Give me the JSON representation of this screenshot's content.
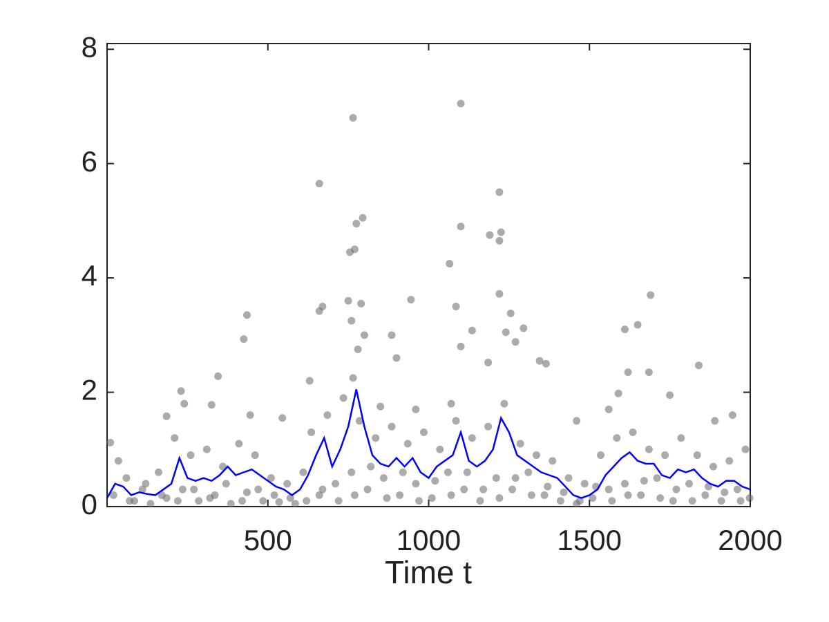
{
  "chart_data": {
    "type": "scatter",
    "xlabel": "Time t",
    "xlim": [
      0,
      2000
    ],
    "ylim": [
      0,
      8.1
    ],
    "xticks": [
      500,
      1000,
      1500,
      2000
    ],
    "yticks": [
      0,
      2,
      4,
      6,
      8
    ],
    "series": [
      {
        "type": "scatter",
        "color": "#666666",
        "x": [
          765,
          1100,
          660,
          1220,
          795,
          775,
          1100,
          1225,
          1190,
          1220,
          770,
          755,
          1065,
          1220,
          1690,
          945,
          750,
          790,
          670,
          1085,
          660,
          435,
          1255,
          1650,
          1295,
          1610,
          1135,
          1240,
          760,
          800,
          885,
          425,
          1270,
          780,
          1100,
          900,
          1185,
          1345,
          1840,
          1365,
          345,
          1620,
          1685,
          630,
          765,
          230,
          1590,
          1750,
          240,
          325,
          1560,
          445,
          185,
          1945,
          1070,
          850,
          960,
          545,
          1460,
          1890,
          10,
          35,
          60,
          85,
          110,
          135,
          160,
          185,
          210,
          235,
          260,
          285,
          310,
          335,
          360,
          385,
          410,
          435,
          460,
          485,
          510,
          535,
          560,
          585,
          610,
          635,
          660,
          685,
          710,
          735,
          760,
          785,
          810,
          835,
          860,
          885,
          910,
          935,
          960,
          985,
          1010,
          1035,
          1060,
          1085,
          1110,
          1135,
          1160,
          1185,
          1210,
          1235,
          1260,
          1285,
          1310,
          1335,
          1360,
          1385,
          1410,
          1435,
          1460,
          1485,
          1510,
          1535,
          1560,
          1585,
          1610,
          1635,
          1660,
          1685,
          1710,
          1735,
          1760,
          1785,
          1810,
          1835,
          1860,
          1885,
          1910,
          1935,
          1960,
          1985,
          1998,
          20,
          70,
          120,
          170,
          220,
          270,
          320,
          370,
          420,
          470,
          520,
          570,
          620,
          670,
          720,
          770,
          820,
          870,
          920,
          970,
          1020,
          1070,
          1120,
          1170,
          1220,
          1270,
          1320,
          1370,
          1420,
          1470,
          1520,
          1570,
          1620,
          1670,
          1720,
          1770,
          1820,
          1870,
          1920,
          1970
        ],
        "values": [
          6.8,
          7.05,
          5.65,
          5.5,
          5.05,
          4.95,
          4.9,
          4.8,
          4.75,
          4.65,
          4.5,
          4.45,
          4.25,
          3.72,
          3.7,
          3.62,
          3.6,
          3.55,
          3.5,
          3.5,
          3.42,
          3.35,
          3.38,
          3.18,
          3.12,
          3.1,
          3.08,
          3.05,
          3.25,
          3.0,
          3.0,
          2.93,
          2.88,
          2.75,
          2.8,
          2.6,
          2.52,
          2.55,
          2.47,
          2.5,
          2.28,
          2.35,
          2.35,
          2.2,
          2.25,
          2.02,
          1.98,
          1.95,
          1.8,
          1.78,
          1.7,
          1.6,
          1.58,
          1.6,
          1.8,
          1.75,
          1.7,
          1.55,
          1.5,
          1.5,
          1.12,
          0.8,
          0.5,
          0.1,
          0.3,
          0.05,
          0.6,
          0.15,
          1.2,
          0.3,
          0.9,
          0.1,
          1.0,
          0.2,
          0.7,
          0.05,
          1.1,
          0.25,
          0.9,
          0.1,
          0.5,
          0.08,
          0.4,
          0.05,
          0.6,
          1.3,
          0.2,
          1.6,
          0.4,
          1.9,
          0.6,
          1.5,
          0.3,
          1.2,
          0.5,
          1.4,
          0.2,
          1.1,
          0.4,
          1.3,
          0.15,
          1.0,
          0.6,
          1.5,
          0.3,
          1.2,
          0.1,
          1.4,
          0.5,
          1.8,
          0.3,
          1.1,
          0.6,
          0.9,
          0.2,
          0.8,
          0.1,
          0.5,
          0.05,
          0.4,
          0.15,
          0.9,
          0.3,
          1.2,
          0.4,
          1.3,
          0.2,
          1.0,
          0.5,
          0.9,
          0.1,
          1.2,
          0.4,
          0.9,
          0.2,
          0.7,
          0.1,
          0.8,
          0.3,
          1.0,
          0.15,
          0.2,
          0.1,
          0.4,
          0.2,
          0.1,
          0.3,
          0.15,
          0.4,
          0.1,
          0.3,
          0.2,
          0.15,
          0.1,
          0.3,
          0.1,
          0.2,
          0.7,
          0.15,
          0.6,
          0.1,
          0.45,
          0.2,
          0.6,
          0.3,
          0.15,
          0.5,
          0.2,
          0.35,
          0.25,
          0.1,
          0.35,
          0.1,
          0.2,
          0.45,
          0.15,
          0.3,
          0.1,
          0.35,
          0.25,
          0.1
        ]
      },
      {
        "type": "line",
        "color": "#0000ff",
        "x": [
          0,
          25,
          50,
          75,
          100,
          125,
          150,
          175,
          200,
          225,
          250,
          275,
          300,
          325,
          350,
          375,
          400,
          425,
          450,
          475,
          500,
          525,
          550,
          575,
          600,
          625,
          650,
          675,
          700,
          725,
          750,
          775,
          800,
          825,
          850,
          875,
          900,
          925,
          950,
          975,
          1000,
          1025,
          1050,
          1075,
          1100,
          1125,
          1150,
          1175,
          1200,
          1225,
          1250,
          1275,
          1300,
          1325,
          1350,
          1375,
          1400,
          1425,
          1450,
          1475,
          1500,
          1525,
          1550,
          1575,
          1600,
          1625,
          1650,
          1675,
          1700,
          1725,
          1750,
          1775,
          1800,
          1825,
          1850,
          1875,
          1900,
          1925,
          1950,
          1975,
          2000
        ],
        "values": [
          0.15,
          0.4,
          0.35,
          0.2,
          0.25,
          0.22,
          0.2,
          0.3,
          0.4,
          0.85,
          0.5,
          0.45,
          0.5,
          0.45,
          0.55,
          0.7,
          0.55,
          0.6,
          0.65,
          0.55,
          0.45,
          0.35,
          0.3,
          0.2,
          0.3,
          0.55,
          0.9,
          1.2,
          0.7,
          1.0,
          1.4,
          2.05,
          1.4,
          0.9,
          0.75,
          0.7,
          0.85,
          0.7,
          0.85,
          0.6,
          0.5,
          0.7,
          0.8,
          0.9,
          1.3,
          0.8,
          0.7,
          0.8,
          1.0,
          1.55,
          1.3,
          0.9,
          0.8,
          0.7,
          0.6,
          0.55,
          0.5,
          0.35,
          0.2,
          0.15,
          0.2,
          0.3,
          0.55,
          0.7,
          0.85,
          0.95,
          0.8,
          0.75,
          0.75,
          0.55,
          0.5,
          0.65,
          0.6,
          0.65,
          0.5,
          0.4,
          0.35,
          0.45,
          0.45,
          0.35,
          0.3
        ]
      }
    ]
  }
}
